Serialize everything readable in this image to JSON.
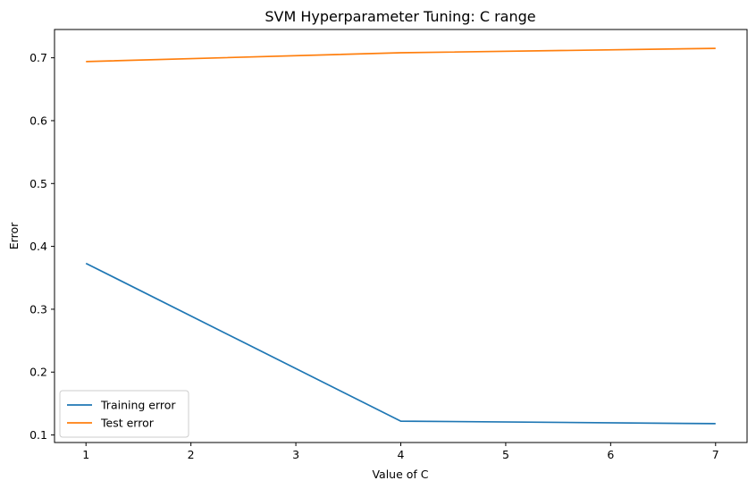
{
  "chart_data": {
    "type": "line",
    "title": "SVM Hyperparameter Tuning: C range",
    "xlabel": "Value of C",
    "ylabel": "Error",
    "x": [
      1,
      4,
      7
    ],
    "xlim": [
      0.7,
      7.3
    ],
    "ylim": [
      0.088,
      0.745
    ],
    "xticks": [
      "1",
      "2",
      "3",
      "4",
      "5",
      "6",
      "7"
    ],
    "yticks": [
      "0.1",
      "0.2",
      "0.3",
      "0.4",
      "0.5",
      "0.6",
      "0.7"
    ],
    "series": [
      {
        "name": "Training error",
        "values": [
          0.373,
          0.122,
          0.118
        ],
        "color": "#1f77b4"
      },
      {
        "name": "Test error",
        "values": [
          0.694,
          0.708,
          0.715
        ],
        "color": "#ff7f0e"
      }
    ],
    "grid": false,
    "legend_position": "lower-left"
  }
}
